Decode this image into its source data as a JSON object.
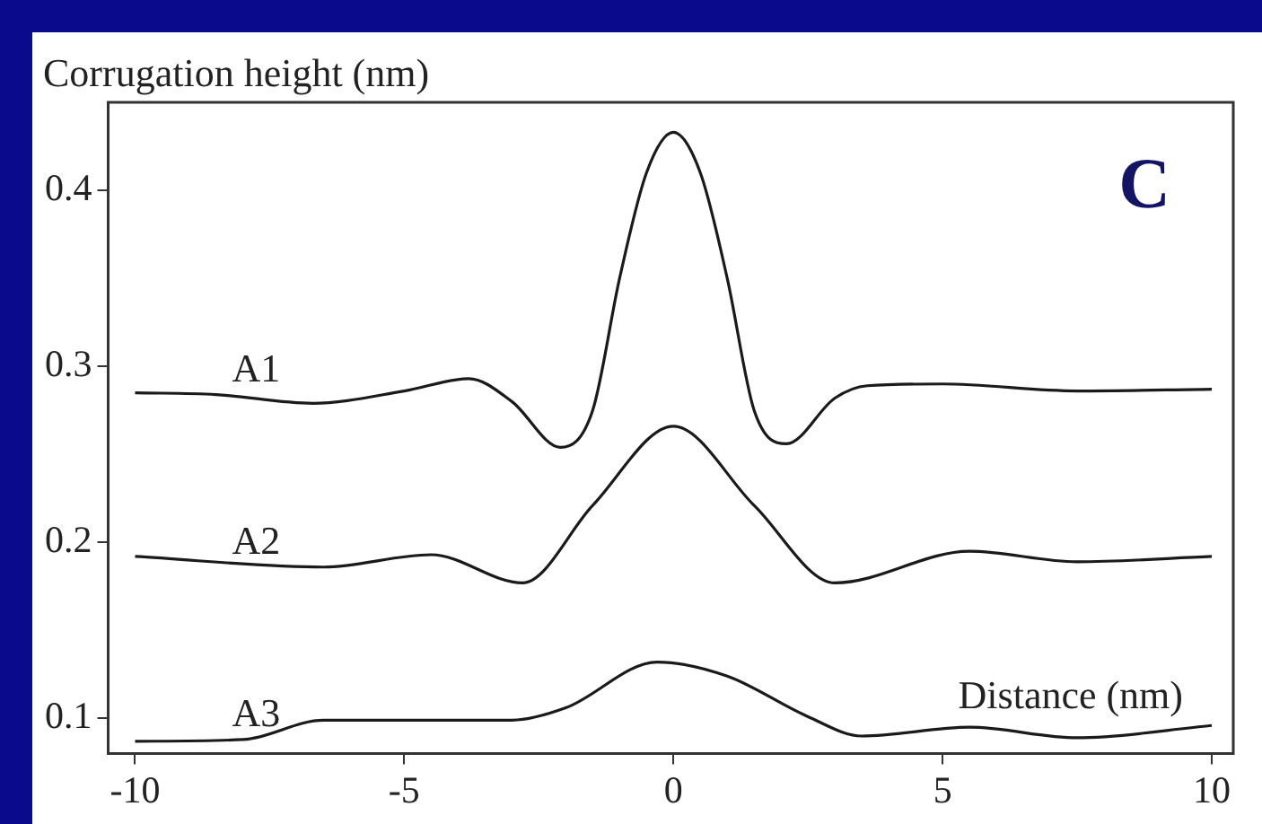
{
  "chart_data": {
    "type": "line",
    "ylabel": "Corrugation height (nm)",
    "xlabel": "Distance (nm)",
    "annotations": [
      "C"
    ],
    "xlim": [
      -10.5,
      10.4
    ],
    "xticks": [
      -10,
      -5,
      0,
      5,
      10
    ],
    "ylim": [
      0.08,
      0.45
    ],
    "yticks": [
      0.1,
      0.2,
      0.3,
      0.4
    ],
    "grid": false,
    "legend": false,
    "marker": "none",
    "line_style": "solid",
    "series": [
      {
        "name": "A1",
        "color": "#1a1a1a",
        "x": [
          -10,
          -8.5,
          -6.7,
          -5,
          -3.8,
          -3,
          -2.1,
          -1.5,
          -1,
          -0.5,
          0,
          0.5,
          1,
          1.5,
          2.1,
          3,
          3.6,
          5,
          7.5,
          10
        ],
        "values": [
          0.285,
          0.284,
          0.279,
          0.286,
          0.293,
          0.28,
          0.254,
          0.275,
          0.35,
          0.41,
          0.433,
          0.41,
          0.35,
          0.275,
          0.256,
          0.282,
          0.289,
          0.29,
          0.286,
          0.287
        ]
      },
      {
        "name": "A2",
        "color": "#1a1a1a",
        "x": [
          -10,
          -6.5,
          -4.5,
          -2.8,
          -1.5,
          0,
          1.5,
          3,
          5.5,
          7.5,
          10
        ],
        "values": [
          0.192,
          0.186,
          0.193,
          0.177,
          0.221,
          0.266,
          0.221,
          0.177,
          0.195,
          0.189,
          0.192
        ]
      },
      {
        "name": "A3",
        "color": "#1a1a1a",
        "x": [
          -10,
          -8,
          -6.5,
          -3,
          -2,
          -0.3,
          1,
          2.5,
          3.5,
          5.5,
          7.5,
          10
        ],
        "values": [
          0.087,
          0.088,
          0.099,
          0.099,
          0.106,
          0.132,
          0.124,
          0.101,
          0.09,
          0.095,
          0.089,
          0.096
        ]
      }
    ]
  }
}
